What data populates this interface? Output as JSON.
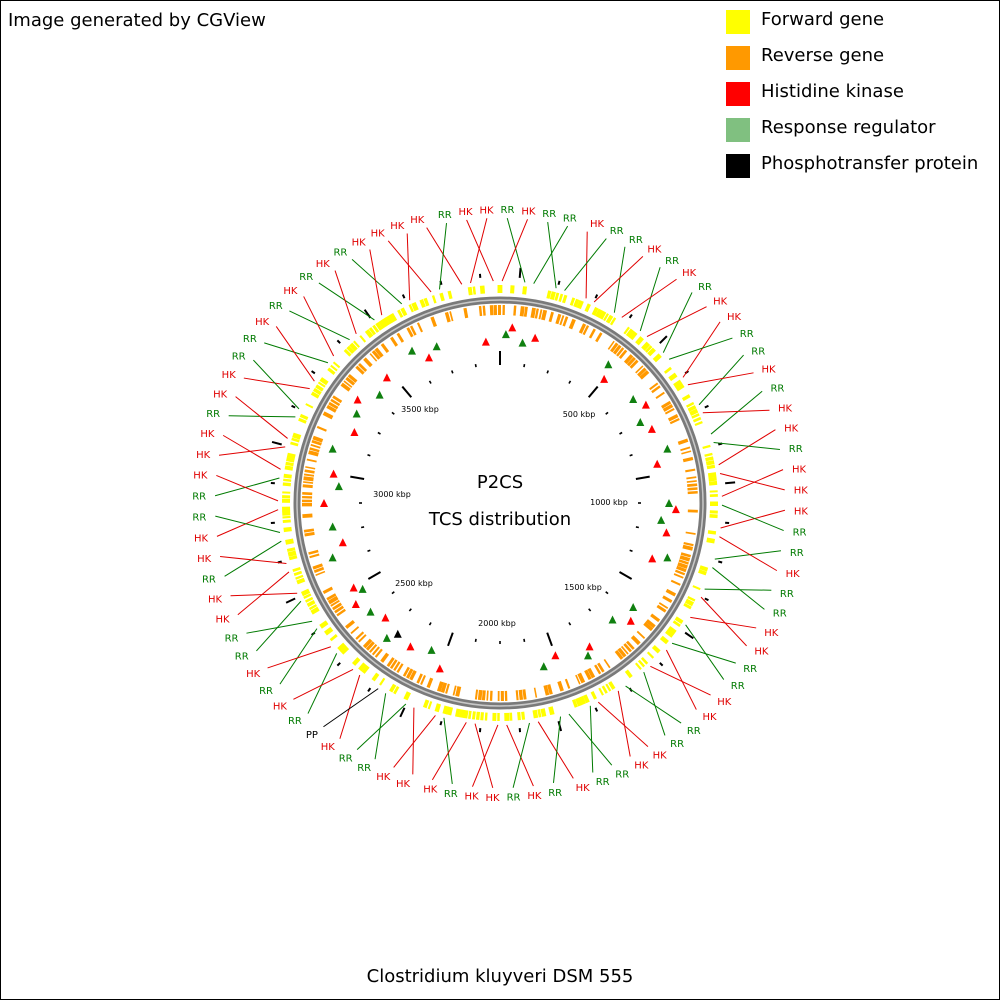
{
  "header": {
    "credit": "Image generated by CGView"
  },
  "legend": [
    {
      "label": "Forward gene",
      "color": "#ffff00"
    },
    {
      "label": "Reverse gene",
      "color": "#ff9900"
    },
    {
      "label": "Histidine kinase",
      "color": "#ff0000"
    },
    {
      "label": "Response regulator",
      "color": "#80c080"
    },
    {
      "label": "Phosphotransfer protein",
      "color": "#000000"
    }
  ],
  "map": {
    "title_line1": "P2CS",
    "title_line2": "TCS distribution",
    "organism": "Clostridium kluyveri DSM 555",
    "ruler_labels": [
      "500 kbp",
      "1000 kbp",
      "1500 kbp",
      "2000 kbp",
      "2500 kbp",
      "3000 kbp",
      "3500 kbp"
    ],
    "feature_colors": {
      "HK": "#e00000",
      "RR": "#007a00",
      "PP": "#000000"
    },
    "feature_labels": [
      "HK",
      "HK",
      "RR",
      "HK",
      "HK",
      "RR",
      "HK",
      "RR",
      "RR",
      "HK",
      "RR",
      "RR",
      "HK",
      "RR",
      "HK",
      "RR",
      "HK",
      "HK",
      "RR",
      "RR",
      "HK",
      "RR",
      "HK",
      "HK",
      "RR",
      "HK",
      "HK",
      "HK",
      "RR",
      "RR",
      "HK",
      "RR",
      "RR",
      "HK",
      "HK",
      "RR",
      "RR",
      "HK",
      "HK",
      "RR",
      "RR",
      "HK",
      "HK",
      "RR",
      "RR",
      "HK",
      "RR",
      "HK",
      "RR",
      "HK",
      "HK",
      "RR",
      "HK",
      "HK",
      "HK",
      "RR",
      "RR",
      "HK",
      "PP",
      "RR",
      "HK",
      "RR",
      "HK",
      "RR",
      "RR",
      "HK",
      "HK",
      "RR",
      "HK",
      "HK",
      "RR",
      "RR",
      "HK",
      "HK",
      "HK",
      "RR",
      "HK",
      "HK",
      "RR",
      "RR",
      "HK",
      "RR",
      "HK",
      "RR",
      "HK",
      "RR",
      "HK",
      "HK"
    ]
  }
}
